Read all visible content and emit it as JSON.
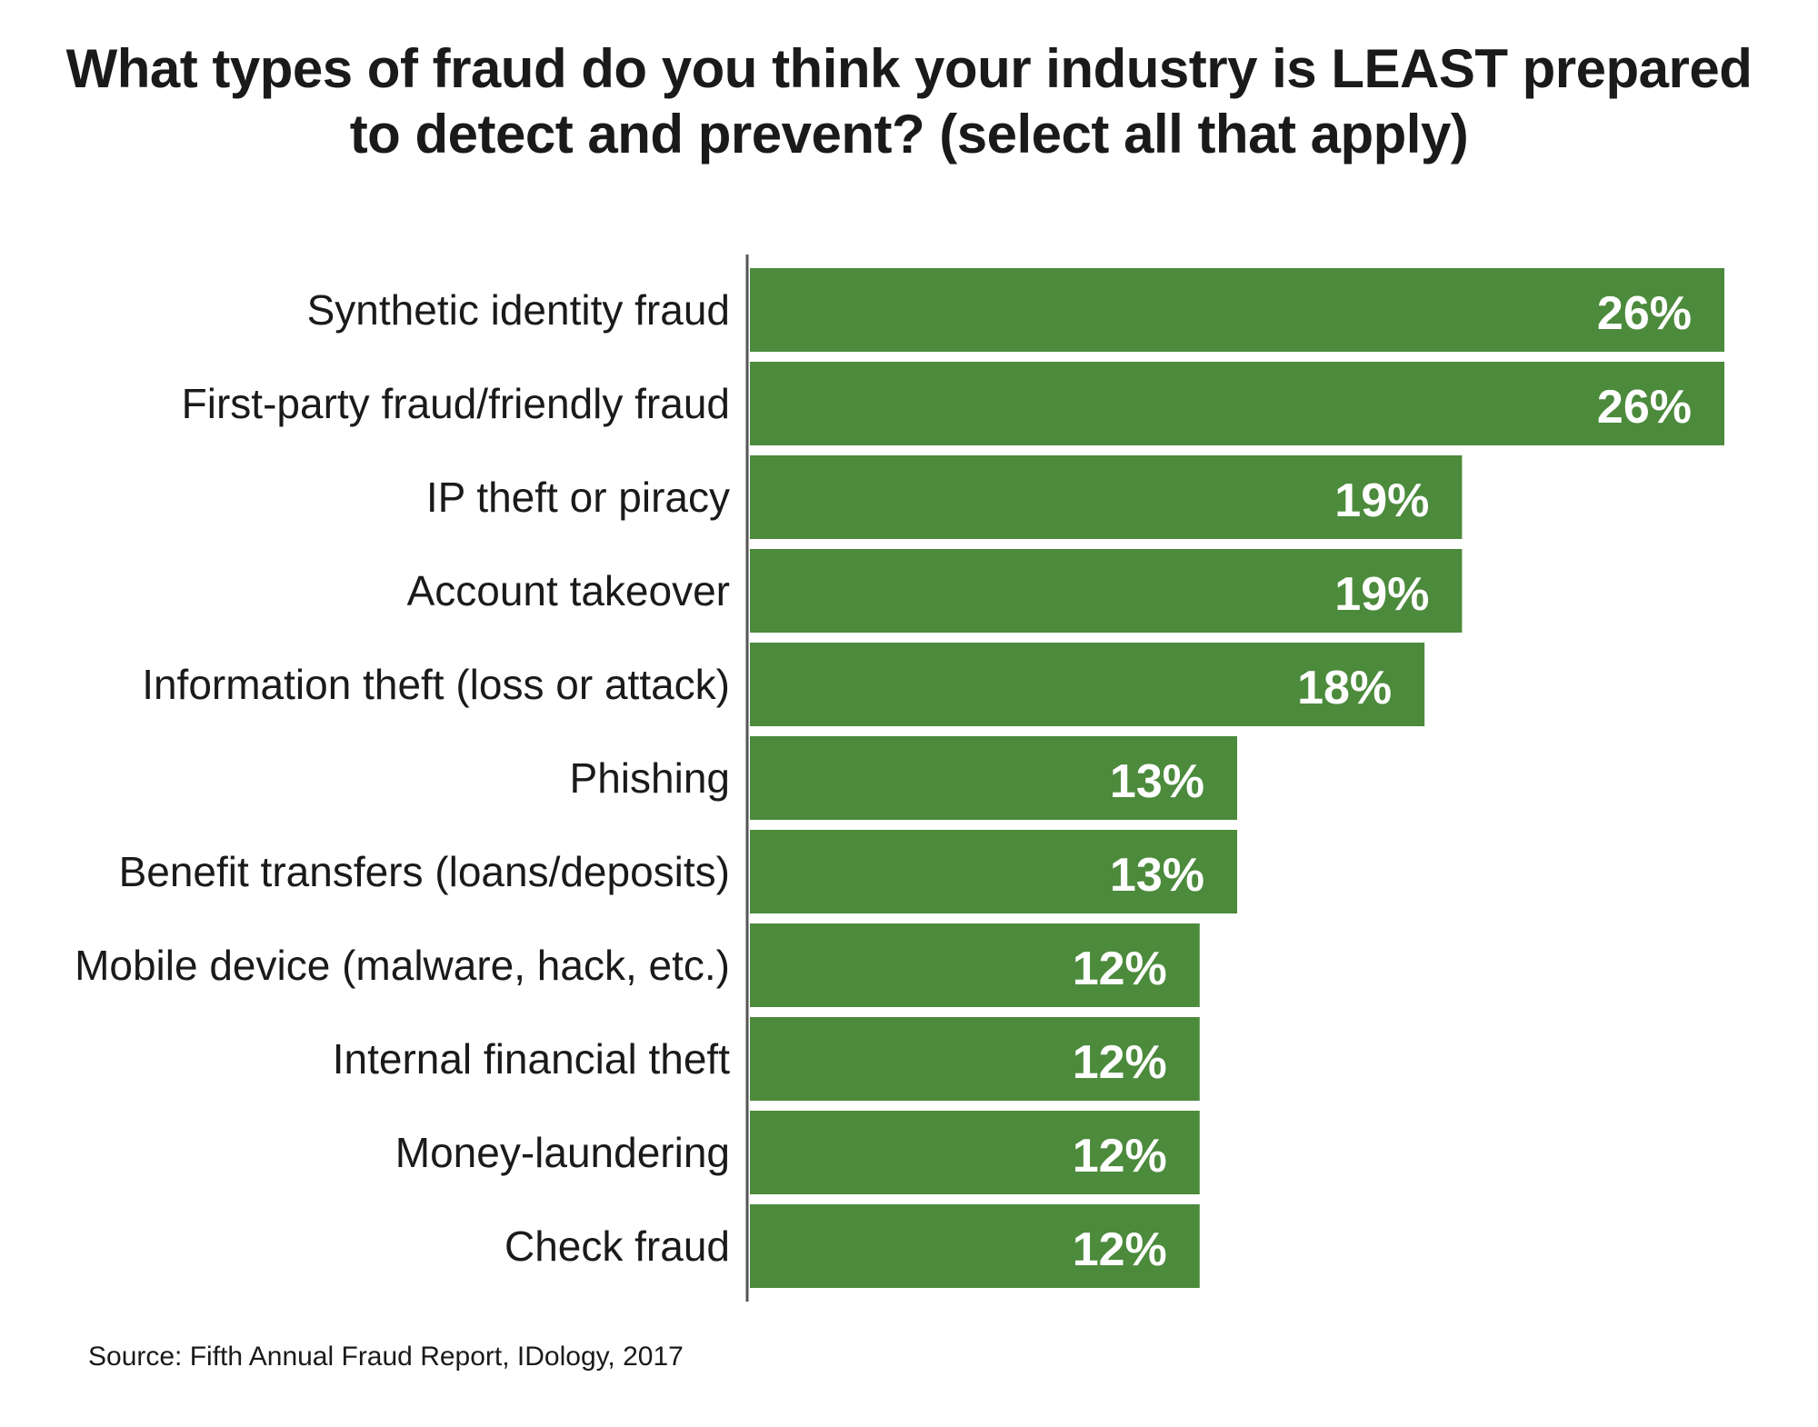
{
  "title_line1": "What types of fraud do you think your industry is LEAST prepared",
  "title_line2": "to detect and prevent? (select all that apply)",
  "source": "Source:  Fifth Annual Fraud Report, IDology, 2017",
  "colors": {
    "bar": "#4c8a3c",
    "axis": "#555555",
    "value_text": "#ffffff"
  },
  "chart_data": {
    "type": "bar",
    "orientation": "horizontal",
    "title": "What types of fraud do you think your industry is LEAST prepared to detect and prevent? (select all that apply)",
    "categories": [
      "Synthetic identity fraud",
      "First-party fraud/friendly fraud",
      "IP theft or piracy",
      "Account takeover",
      "Information theft (loss or attack)",
      "Phishing",
      "Benefit transfers (loans/deposits)",
      "Mobile device (malware, hack, etc.)",
      "Internal financial theft",
      "Money-laundering",
      "Check fraud"
    ],
    "values": [
      26,
      26,
      19,
      19,
      18,
      13,
      13,
      12,
      12,
      12,
      12
    ],
    "value_labels": [
      "26%",
      "26%",
      "19%",
      "19%",
      "18%",
      "13%",
      "13%",
      "12%",
      "12%",
      "12%",
      "12%"
    ],
    "unit": "%",
    "xlim": [
      0,
      26
    ],
    "grid": false,
    "legend": "none"
  }
}
